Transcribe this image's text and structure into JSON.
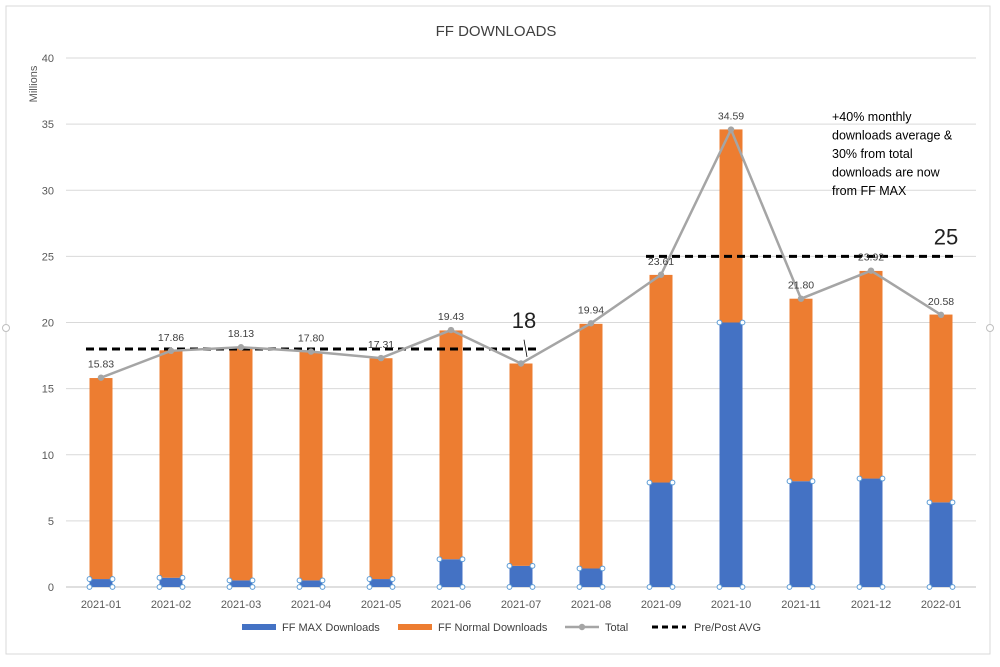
{
  "chart_data": {
    "type": "bar",
    "stacked": true,
    "title": "FF DOWNLOADS",
    "ylabel": "Millions",
    "xlabel": "",
    "ylim": [
      0,
      40
    ],
    "yticks": [
      "0",
      "5",
      "10",
      "15",
      "20",
      "25",
      "30",
      "35",
      "40"
    ],
    "grid": true,
    "legend_position": "bottom",
    "categories": [
      "2021-01",
      "2021-02",
      "2021-03",
      "2021-04",
      "2021-05",
      "2021-06",
      "2021-07",
      "2021-08",
      "2021-09",
      "2021-10",
      "2021-11",
      "2021-12",
      "2022-01"
    ],
    "series": [
      {
        "name": "FF MAX Downloads",
        "kind": "bar",
        "color": "#4472C4",
        "values": [
          0.6,
          0.7,
          0.5,
          0.5,
          0.6,
          2.1,
          1.6,
          1.4,
          7.9,
          20.0,
          8.0,
          8.2,
          6.4
        ]
      },
      {
        "name": "FF Normal Downloads",
        "kind": "bar",
        "color": "#ED7D31",
        "values": [
          15.2,
          17.2,
          17.6,
          17.3,
          16.7,
          17.3,
          15.3,
          18.5,
          15.7,
          14.6,
          13.8,
          15.7,
          14.2
        ]
      },
      {
        "name": "Total",
        "kind": "line",
        "color": "#A5A5A5",
        "values": [
          15.83,
          17.86,
          18.13,
          17.8,
          17.31,
          19.43,
          16.9,
          19.94,
          23.61,
          34.59,
          21.8,
          23.92,
          20.58
        ],
        "labels": [
          "15.83",
          "17.86",
          "18.13",
          "17.80",
          "17.31",
          "19.43",
          "",
          "19.94",
          "23.61",
          "34.59",
          "21.80",
          "23.92",
          "20.58"
        ]
      },
      {
        "name": "Pre/Post AVG",
        "kind": "dashed",
        "color": "#000000",
        "segments": [
          {
            "from": 0,
            "to": 6,
            "value": 18
          },
          {
            "from": 8,
            "to": 12,
            "value": 25
          }
        ]
      }
    ],
    "annotations": [
      {
        "text": "18",
        "near": "2021-07"
      },
      {
        "text": "25",
        "near": "2022-01"
      },
      {
        "lines": [
          "+40% monthly",
          "downloads average &",
          "30% from total",
          "downloads are now",
          "from FF MAX"
        ],
        "near": "top-right"
      }
    ]
  }
}
